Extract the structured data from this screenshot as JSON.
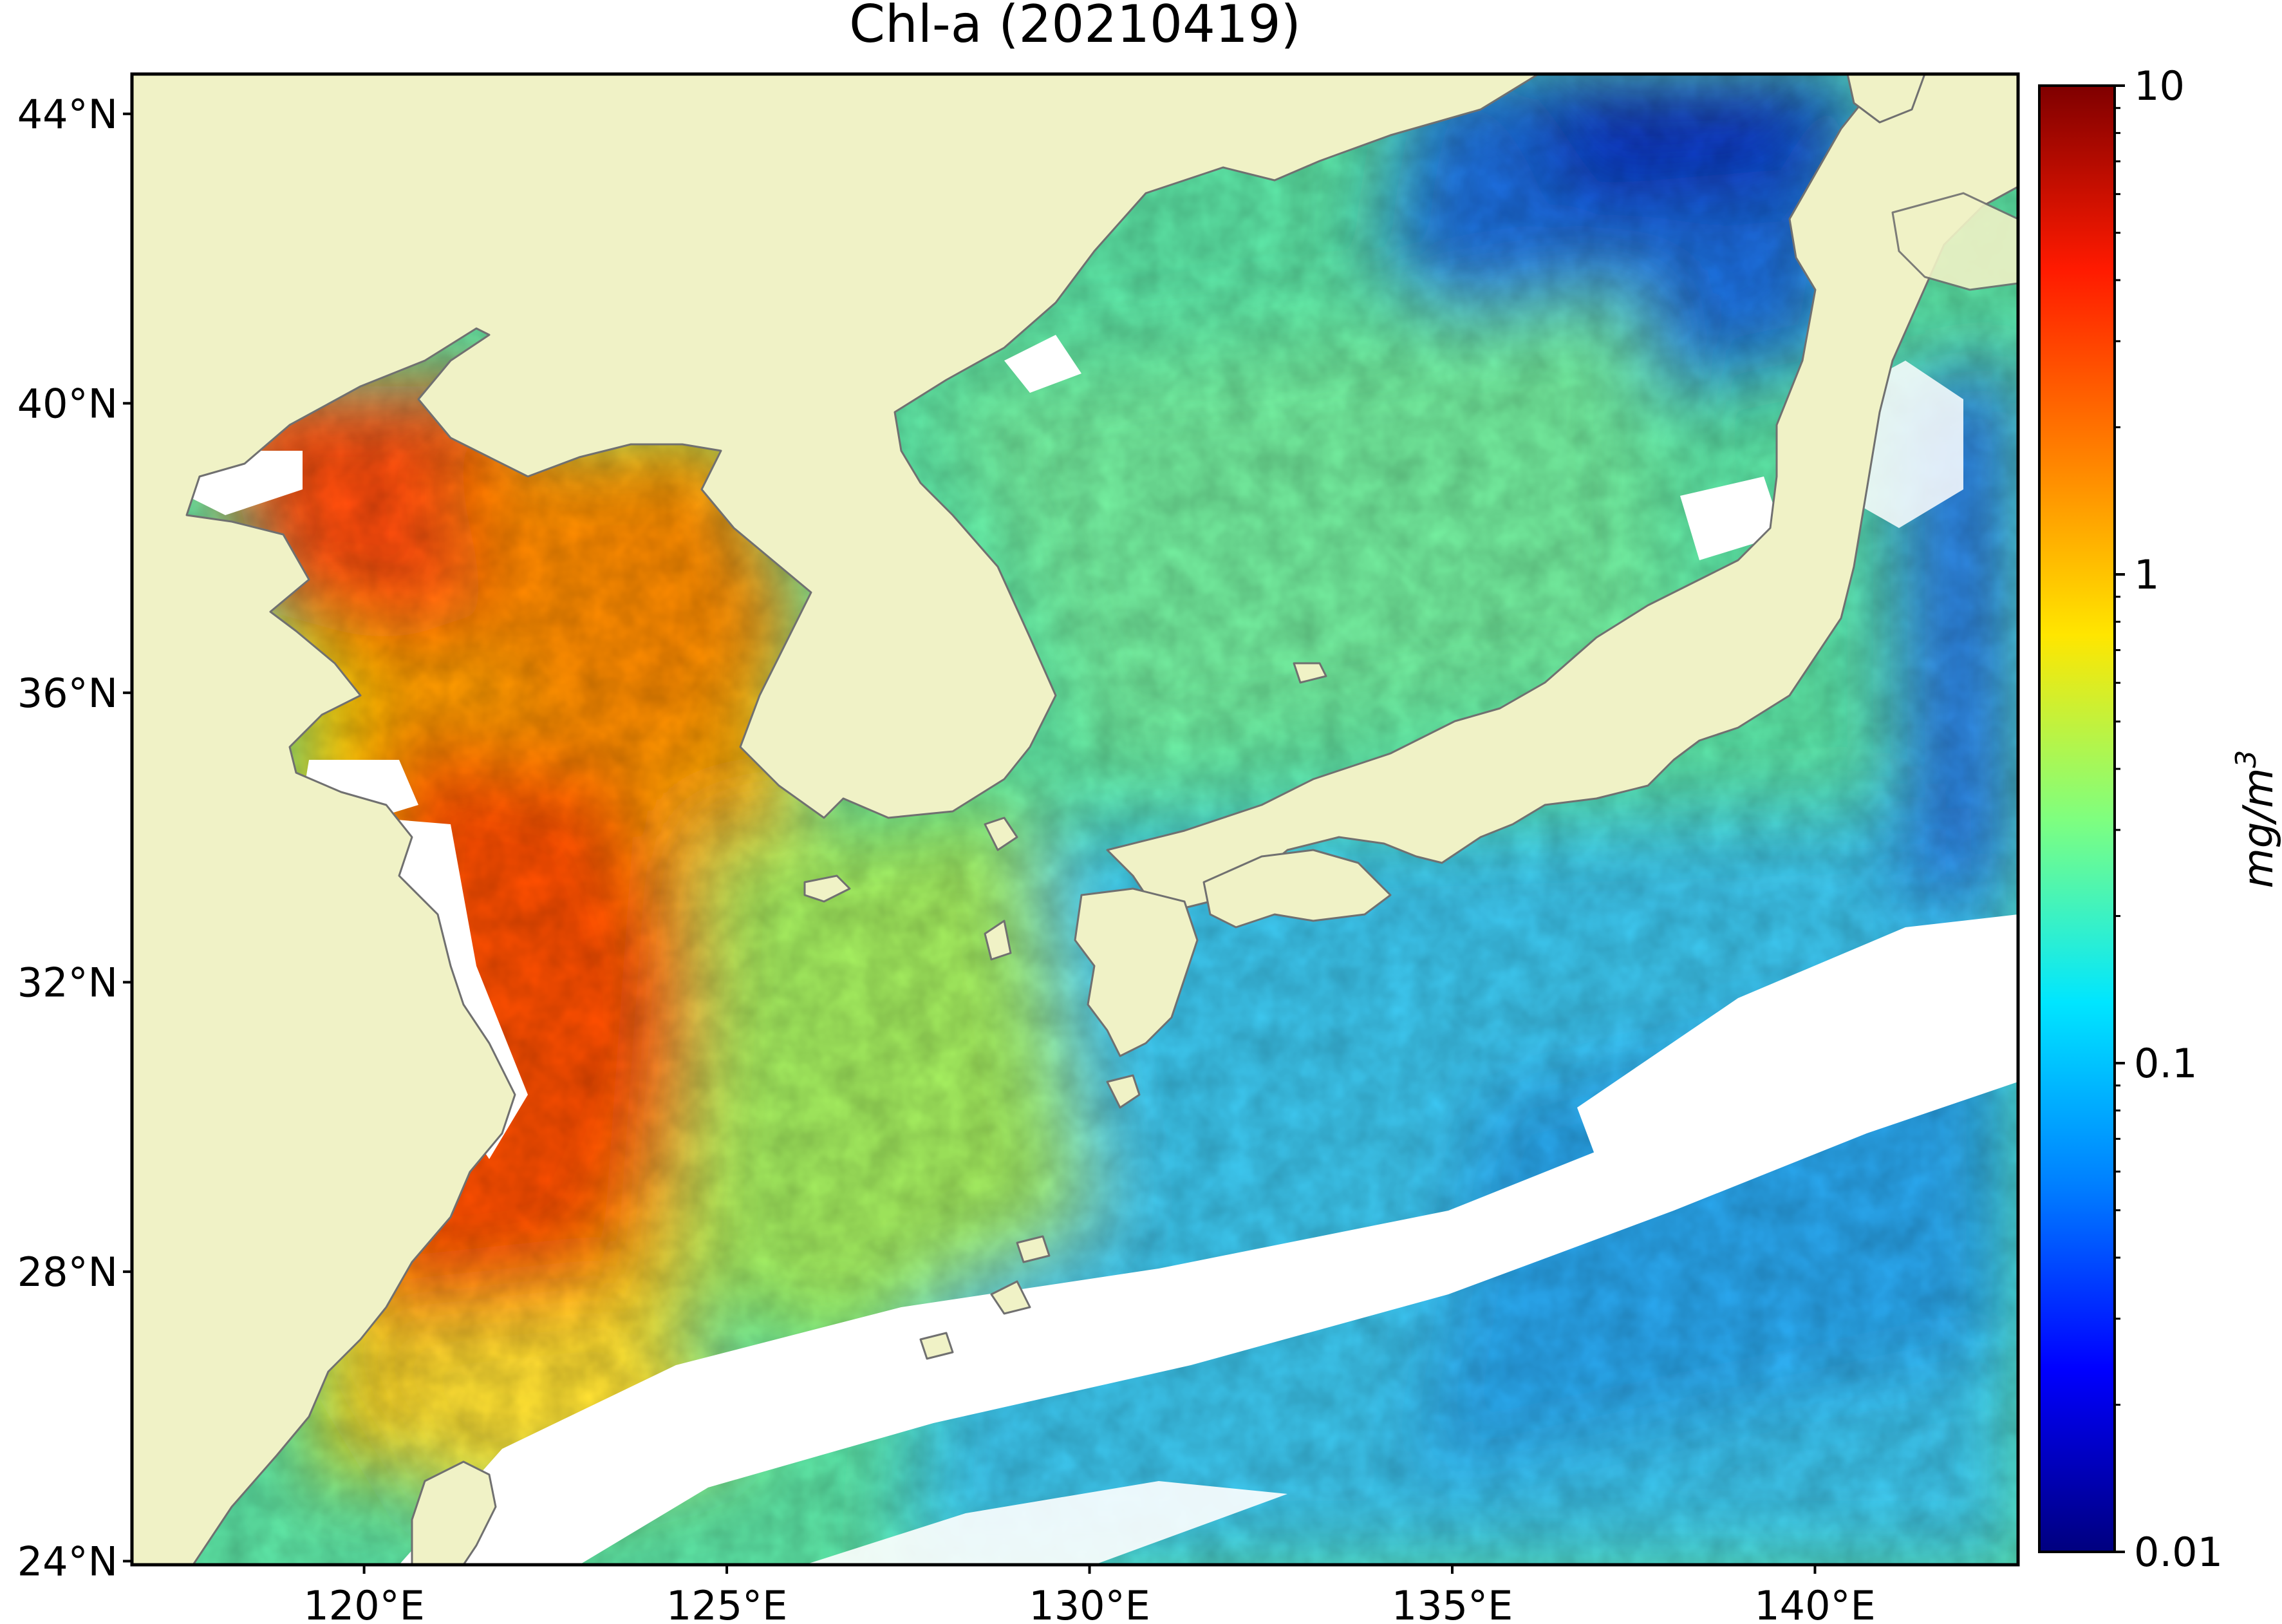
{
  "title": "Chl-a (20210419)",
  "map": {
    "lon_range": [
      116.8,
      142.8
    ],
    "lat_range": [
      23.95,
      44.55
    ],
    "lon_ticks": [
      {
        "value": 120,
        "label": "120°E"
      },
      {
        "value": 125,
        "label": "125°E"
      },
      {
        "value": 130,
        "label": "130°E"
      },
      {
        "value": 135,
        "label": "135°E"
      },
      {
        "value": 140,
        "label": "140°E"
      }
    ],
    "lat_ticks": [
      {
        "value": 24,
        "label": "24°N"
      },
      {
        "value": 28,
        "label": "28°N"
      },
      {
        "value": 32,
        "label": "32°N"
      },
      {
        "value": 36,
        "label": "36°N"
      },
      {
        "value": 40,
        "label": "40°N"
      },
      {
        "value": 44,
        "label": "44°N"
      }
    ],
    "land_color": "#f0f2c6",
    "coast_color": "#707070",
    "no_data_color": "#ffffff"
  },
  "colorbar": {
    "label": "mg/m",
    "label_superscript": "3",
    "scale": "log",
    "range": [
      0.01,
      10
    ],
    "colormap": "jet",
    "ticks": [
      {
        "value": 0.01,
        "label": "0.01"
      },
      {
        "value": 0.1,
        "label": "0.1"
      },
      {
        "value": 1,
        "label": "1"
      },
      {
        "value": 10,
        "label": "10"
      }
    ],
    "minor_ticks": [
      0.02,
      0.03,
      0.04,
      0.05,
      0.06,
      0.07,
      0.08,
      0.09,
      0.2,
      0.3,
      0.4,
      0.5,
      0.6,
      0.7,
      0.8,
      0.9,
      2,
      3,
      4,
      5,
      6,
      7,
      8,
      9
    ],
    "colors": [
      "#00007f",
      "#0000ff",
      "#007fff",
      "#00e6ff",
      "#7fff7f",
      "#ffe600",
      "#ff7f00",
      "#ff1a00",
      "#7f0000"
    ]
  }
}
